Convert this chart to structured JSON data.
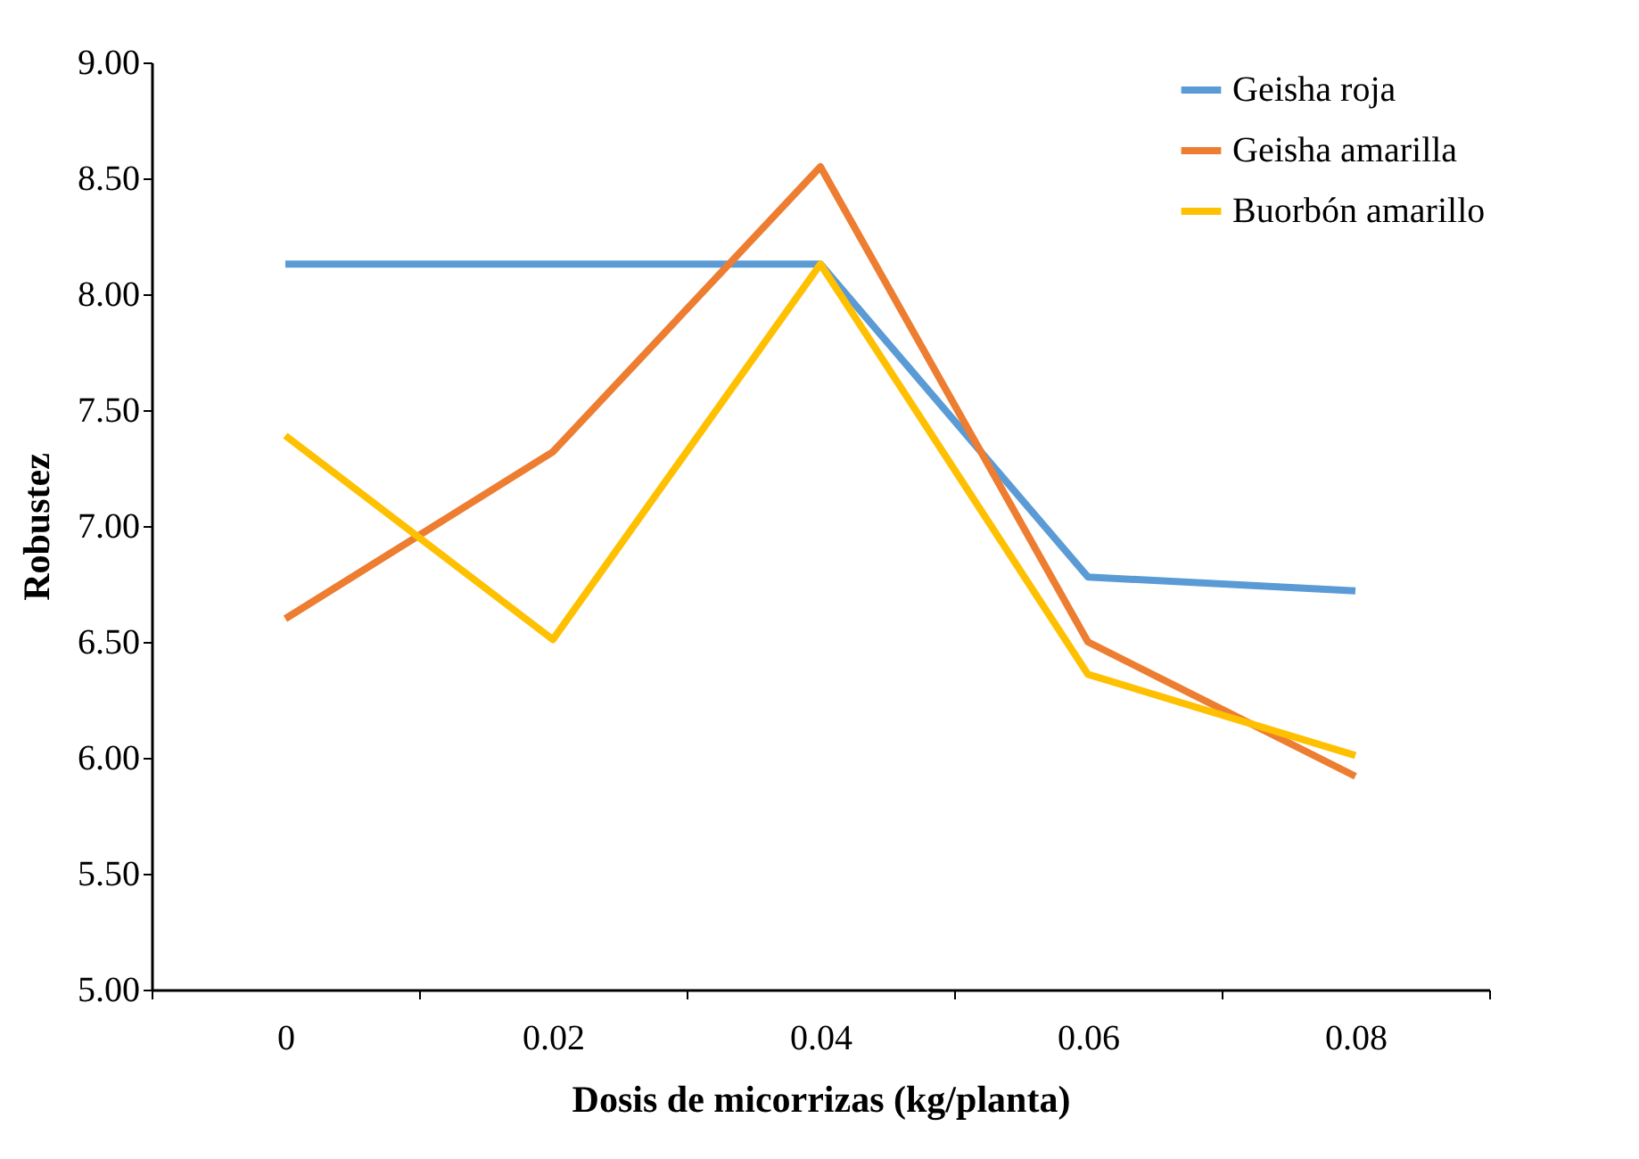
{
  "chart_data": {
    "type": "line",
    "xlabel": "Dosis de micorrizas (kg/planta)",
    "ylabel": "Robustez",
    "categories": [
      "0",
      "0.02",
      "0.04",
      "0.06",
      "0.08"
    ],
    "series": [
      {
        "name": "Geisha roja",
        "color": "#5b9bd5",
        "values": [
          8.13,
          8.13,
          8.13,
          6.78,
          6.72
        ]
      },
      {
        "name": "Geisha amarilla",
        "color": "#ed7d31",
        "values": [
          6.6,
          7.32,
          8.55,
          6.5,
          5.92
        ]
      },
      {
        "name": "Buorbón amarillo",
        "color": "#ffc000",
        "values": [
          7.39,
          6.51,
          8.13,
          6.36,
          6.01
        ]
      }
    ],
    "ylim": [
      5,
      9
    ],
    "yticks": [
      {
        "value": 5,
        "label": "5.00"
      },
      {
        "value": 5.5,
        "label": "5.50"
      },
      {
        "value": 6,
        "label": "6.00"
      },
      {
        "value": 6.5,
        "label": "6.50"
      },
      {
        "value": 7,
        "label": "7.00"
      },
      {
        "value": 7.5,
        "label": "7.50"
      },
      {
        "value": 8,
        "label": "8.00"
      },
      {
        "value": 8.5,
        "label": "8.50"
      },
      {
        "value": 9,
        "label": "9.00"
      }
    ],
    "grid": false,
    "legend": "top right",
    "marker": "none",
    "line_style": "solid"
  }
}
